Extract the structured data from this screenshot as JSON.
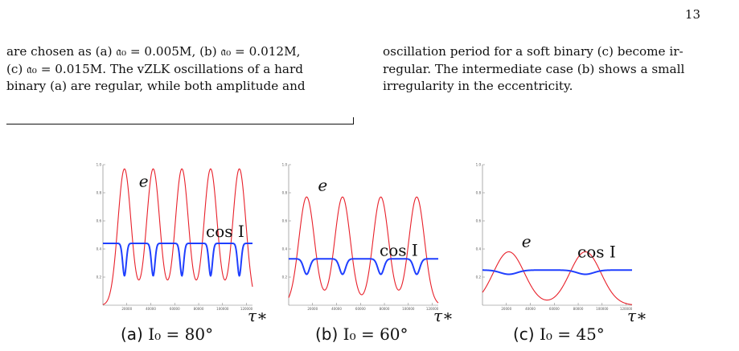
{
  "page_number": "13",
  "left_column": [
    "are chosen as (a) 𝔞₀ = 0.005M, (b) 𝔞₀ = 0.012M,",
    "(c) 𝔞₀ = 0.015M. The vZLK oscillations of a hard",
    "binary (a) are regular, while both amplitude and"
  ],
  "right_column": [
    "oscillation period for a soft binary (c) become ir-",
    "regular. The intermediate case (b) shows a small",
    "irregularity in the eccentricity."
  ],
  "colors": {
    "e_curve": "#e8202a",
    "cosI_curve": "#1f3fff"
  },
  "chart_data": [
    {
      "type": "line",
      "caption_prefix": "(a)",
      "caption_math": "I₀ = 80°",
      "xlabel": "τ∗",
      "x_ticks": [
        "20000",
        "40000",
        "60000",
        "80000",
        "100000",
        "120000"
      ],
      "y_ticks": [
        "0.2",
        "0.4",
        "0.6",
        "0.8",
        "1.0"
      ],
      "xlim": [
        0,
        125000
      ],
      "ylim": [
        0,
        1.0
      ],
      "series": [
        {
          "name": "e",
          "peak_x": [
            18000,
            42000,
            66000,
            90000,
            114000
          ],
          "peak_y": 0.97,
          "base_y": 0.0,
          "width": 5500
        },
        {
          "name": "cos I",
          "dip_x": [
            18000,
            42000,
            66000,
            90000,
            114000
          ],
          "base_y": 0.44,
          "dip_y": 0.21,
          "width": 1500
        }
      ],
      "labels": [
        {
          "text": "e",
          "series": "e"
        },
        {
          "text": "cos I",
          "series": "cos I"
        }
      ]
    },
    {
      "type": "line",
      "caption_prefix": "(b)",
      "caption_math": "I₀ = 60°",
      "xlabel": "τ∗",
      "x_ticks": [
        "20000",
        "40000",
        "60000",
        "80000",
        "100000",
        "120000"
      ],
      "y_ticks": [
        "0.2",
        "0.4",
        "0.6",
        "0.8",
        "1.0"
      ],
      "xlim": [
        0,
        125000
      ],
      "ylim": [
        0,
        1.0
      ],
      "series": [
        {
          "name": "e",
          "peak_x": [
            15000,
            45000,
            77000,
            107000
          ],
          "peak_y": 0.77,
          "base_y": 0.0,
          "width": 6500
        },
        {
          "name": "cos I",
          "dip_x": [
            15000,
            45000,
            77000,
            107000
          ],
          "base_y": 0.33,
          "dip_y": 0.22,
          "width": 2500
        }
      ],
      "labels": [
        {
          "text": "e",
          "series": "e"
        },
        {
          "text": "cos I",
          "series": "cos I"
        }
      ]
    },
    {
      "type": "line",
      "caption_prefix": "(c)",
      "caption_math": "I₀ = 45°",
      "xlabel": "τ∗",
      "x_ticks": [
        "20000",
        "40000",
        "60000",
        "80000",
        "100000",
        "120000"
      ],
      "y_ticks": [
        "0.2",
        "0.4",
        "0.6",
        "0.8",
        "1.0"
      ],
      "xlim": [
        0,
        125000
      ],
      "ylim": [
        0,
        1.0
      ],
      "series": [
        {
          "name": "e",
          "peak_x": [
            22000,
            86000
          ],
          "peak_y": 0.38,
          "base_y": 0.0,
          "width": 13000
        },
        {
          "name": "cos I",
          "dip_x": [
            22000,
            86000
          ],
          "base_y": 0.25,
          "dip_y": 0.22,
          "width": 7000
        }
      ],
      "labels": [
        {
          "text": "e",
          "series": "e"
        },
        {
          "text": "cos I",
          "series": "cos I"
        }
      ]
    }
  ]
}
